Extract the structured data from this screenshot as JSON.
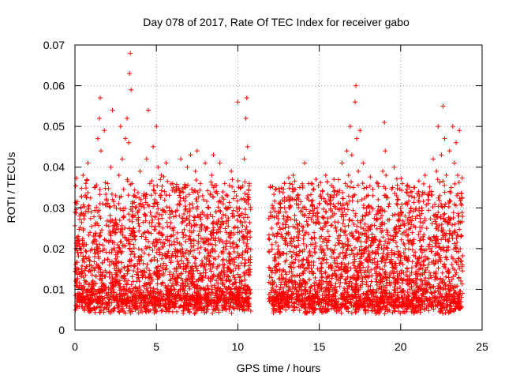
{
  "chart_data": {
    "type": "scatter",
    "title": "Day 078 of 2017, Rate Of TEC Index for receiver gabo",
    "xlabel": "GPS time / hours",
    "ylabel": "ROTI / TECUs",
    "xlim": [
      0,
      25
    ],
    "ylim": [
      0,
      0.07
    ],
    "xticks": [
      0,
      5,
      10,
      15,
      20,
      25
    ],
    "xtick_labels": [
      "0",
      "5",
      "10",
      "15",
      "20",
      "25"
    ],
    "yticks": [
      0,
      0.01,
      0.02,
      0.03,
      0.04,
      0.05,
      0.06,
      0.07
    ],
    "ytick_labels": [
      "0",
      "0.01",
      "0.02",
      "0.03",
      "0.04",
      "0.05",
      "0.06",
      "0.07"
    ],
    "grid": true,
    "marker": "+",
    "color": "#ff0000",
    "data_gap_hours": [
      10.8,
      11.9
    ],
    "series": [
      {
        "points": [
          [
            0.05,
            0.012
          ],
          [
            0.1,
            0.031
          ],
          [
            0.15,
            0.022
          ],
          [
            0.2,
            0.009
          ],
          [
            0.3,
            0.028
          ],
          [
            0.4,
            0.015
          ],
          [
            0.5,
            0.038
          ],
          [
            0.6,
            0.01
          ],
          [
            0.7,
            0.021
          ],
          [
            0.8,
            0.041
          ],
          [
            0.9,
            0.016
          ],
          [
            1.0,
            0.029
          ],
          [
            1.1,
            0.012
          ],
          [
            1.2,
            0.035
          ],
          [
            1.3,
            0.019
          ],
          [
            1.4,
            0.047
          ],
          [
            1.5,
            0.052
          ],
          [
            1.55,
            0.057
          ],
          [
            1.6,
            0.044
          ],
          [
            1.7,
            0.031
          ],
          [
            1.8,
            0.049
          ],
          [
            1.9,
            0.022
          ],
          [
            2.0,
            0.036
          ],
          [
            2.1,
            0.014
          ],
          [
            2.2,
            0.04
          ],
          [
            2.3,
            0.054
          ],
          [
            2.4,
            0.025
          ],
          [
            2.5,
            0.033
          ],
          [
            2.6,
            0.018
          ],
          [
            2.7,
            0.038
          ],
          [
            2.8,
            0.05
          ],
          [
            2.9,
            0.042
          ],
          [
            3.0,
            0.028
          ],
          [
            3.1,
            0.047
          ],
          [
            3.2,
            0.052
          ],
          [
            3.3,
            0.046
          ],
          [
            3.35,
            0.063
          ],
          [
            3.4,
            0.068
          ],
          [
            3.45,
            0.059
          ],
          [
            3.5,
            0.036
          ],
          [
            3.6,
            0.021
          ],
          [
            3.7,
            0.03
          ],
          [
            3.8,
            0.012
          ],
          [
            3.9,
            0.027
          ],
          [
            4.0,
            0.039
          ],
          [
            4.1,
            0.018
          ],
          [
            4.2,
            0.033
          ],
          [
            4.3,
            0.024
          ],
          [
            4.4,
            0.042
          ],
          [
            4.5,
            0.054
          ],
          [
            4.6,
            0.036
          ],
          [
            4.7,
            0.028
          ],
          [
            4.8,
            0.045
          ],
          [
            4.9,
            0.032
          ],
          [
            5.0,
            0.05
          ],
          [
            5.1,
            0.04
          ],
          [
            5.2,
            0.026
          ],
          [
            5.3,
            0.038
          ],
          [
            5.4,
            0.015
          ],
          [
            5.5,
            0.034
          ],
          [
            5.6,
            0.041
          ],
          [
            5.7,
            0.022
          ],
          [
            5.8,
            0.03
          ],
          [
            5.9,
            0.017
          ],
          [
            6.0,
            0.036
          ],
          [
            6.1,
            0.021
          ],
          [
            6.2,
            0.028
          ],
          [
            6.3,
            0.013
          ],
          [
            6.4,
            0.031
          ],
          [
            6.5,
            0.042
          ],
          [
            6.6,
            0.024
          ],
          [
            6.7,
            0.035
          ],
          [
            6.8,
            0.019
          ],
          [
            6.9,
            0.04
          ],
          [
            7.0,
            0.027
          ],
          [
            7.1,
            0.043
          ],
          [
            7.2,
            0.031
          ],
          [
            7.3,
            0.022
          ],
          [
            7.4,
            0.039
          ],
          [
            7.5,
            0.044
          ],
          [
            7.6,
            0.028
          ],
          [
            7.7,
            0.036
          ],
          [
            7.8,
            0.017
          ],
          [
            7.9,
            0.032
          ],
          [
            8.0,
            0.041
          ],
          [
            8.1,
            0.025
          ],
          [
            8.2,
            0.03
          ],
          [
            8.3,
            0.015
          ],
          [
            8.4,
            0.038
          ],
          [
            8.5,
            0.043
          ],
          [
            8.6,
            0.022
          ],
          [
            8.7,
            0.034
          ],
          [
            8.8,
            0.027
          ],
          [
            8.9,
            0.041
          ],
          [
            9.0,
            0.019
          ],
          [
            9.1,
            0.031
          ],
          [
            9.2,
            0.036
          ],
          [
            9.3,
            0.024
          ],
          [
            9.4,
            0.03
          ],
          [
            9.5,
            0.017
          ],
          [
            9.6,
            0.039
          ],
          [
            9.7,
            0.028
          ],
          [
            9.8,
            0.034
          ],
          [
            9.9,
            0.021
          ],
          [
            10.0,
            0.056
          ],
          [
            10.1,
            0.028
          ],
          [
            10.2,
            0.035
          ],
          [
            10.3,
            0.019
          ],
          [
            10.4,
            0.042
          ],
          [
            10.5,
            0.052
          ],
          [
            10.55,
            0.057
          ],
          [
            10.6,
            0.045
          ],
          [
            10.65,
            0.031
          ],
          [
            10.7,
            0.036
          ],
          [
            12.0,
            0.035
          ],
          [
            12.1,
            0.021
          ],
          [
            12.2,
            0.03
          ],
          [
            12.3,
            0.014
          ],
          [
            12.4,
            0.026
          ],
          [
            12.5,
            0.019
          ],
          [
            12.6,
            0.031
          ],
          [
            12.7,
            0.023
          ],
          [
            12.8,
            0.028
          ],
          [
            12.9,
            0.012
          ],
          [
            13.0,
            0.032
          ],
          [
            13.1,
            0.024
          ],
          [
            13.2,
            0.036
          ],
          [
            13.3,
            0.018
          ],
          [
            13.4,
            0.038
          ],
          [
            13.5,
            0.027
          ],
          [
            13.6,
            0.031
          ],
          [
            13.7,
            0.022
          ],
          [
            13.8,
            0.035
          ],
          [
            13.9,
            0.016
          ],
          [
            14.0,
            0.03
          ],
          [
            14.1,
            0.041
          ],
          [
            14.2,
            0.024
          ],
          [
            14.3,
            0.033
          ],
          [
            14.4,
            0.019
          ],
          [
            14.5,
            0.036
          ],
          [
            14.6,
            0.028
          ],
          [
            14.7,
            0.02
          ],
          [
            14.8,
            0.037
          ],
          [
            14.9,
            0.015
          ],
          [
            15.0,
            0.031
          ],
          [
            15.1,
            0.025
          ],
          [
            15.2,
            0.034
          ],
          [
            15.3,
            0.019
          ],
          [
            15.4,
            0.038
          ],
          [
            15.5,
            0.022
          ],
          [
            15.6,
            0.032
          ],
          [
            15.7,
            0.016
          ],
          [
            15.8,
            0.029
          ],
          [
            15.9,
            0.037
          ],
          [
            16.0,
            0.025
          ],
          [
            16.1,
            0.034
          ],
          [
            16.2,
            0.018
          ],
          [
            16.3,
            0.031
          ],
          [
            16.4,
            0.041
          ],
          [
            16.5,
            0.027
          ],
          [
            16.6,
            0.036
          ],
          [
            16.7,
            0.044
          ],
          [
            16.8,
            0.038
          ],
          [
            16.9,
            0.05
          ],
          [
            17.0,
            0.043
          ],
          [
            17.1,
            0.035
          ],
          [
            17.2,
            0.056
          ],
          [
            17.25,
            0.06
          ],
          [
            17.3,
            0.047
          ],
          [
            17.4,
            0.039
          ],
          [
            17.5,
            0.049
          ],
          [
            17.6,
            0.032
          ],
          [
            17.7,
            0.041
          ],
          [
            17.8,
            0.026
          ],
          [
            17.9,
            0.035
          ],
          [
            18.0,
            0.018
          ],
          [
            18.1,
            0.029
          ],
          [
            18.2,
            0.022
          ],
          [
            18.3,
            0.033
          ],
          [
            18.4,
            0.015
          ],
          [
            18.5,
            0.027
          ],
          [
            18.6,
            0.036
          ],
          [
            18.7,
            0.021
          ],
          [
            18.8,
            0.03
          ],
          [
            18.9,
            0.039
          ],
          [
            19.0,
            0.051
          ],
          [
            19.05,
            0.044
          ],
          [
            19.1,
            0.038
          ],
          [
            19.2,
            0.024
          ],
          [
            19.3,
            0.031
          ],
          [
            19.4,
            0.017
          ],
          [
            19.5,
            0.035
          ],
          [
            19.6,
            0.04
          ],
          [
            19.7,
            0.023
          ],
          [
            19.8,
            0.032
          ],
          [
            19.9,
            0.019
          ],
          [
            20.0,
            0.029
          ],
          [
            20.1,
            0.036
          ],
          [
            20.2,
            0.024
          ],
          [
            20.3,
            0.031
          ],
          [
            20.4,
            0.015
          ],
          [
            20.5,
            0.033
          ],
          [
            20.6,
            0.027
          ],
          [
            20.7,
            0.021
          ],
          [
            20.8,
            0.035
          ],
          [
            20.9,
            0.018
          ],
          [
            21.0,
            0.028
          ],
          [
            21.1,
            0.034
          ],
          [
            21.2,
            0.022
          ],
          [
            21.3,
            0.03
          ],
          [
            21.4,
            0.016
          ],
          [
            21.5,
            0.038
          ],
          [
            21.6,
            0.025
          ],
          [
            21.7,
            0.032
          ],
          [
            21.8,
            0.02
          ],
          [
            21.9,
            0.034
          ],
          [
            22.0,
            0.042
          ],
          [
            22.1,
            0.028
          ],
          [
            22.2,
            0.039
          ],
          [
            22.3,
            0.05
          ],
          [
            22.4,
            0.033
          ],
          [
            22.5,
            0.043
          ],
          [
            22.6,
            0.055
          ],
          [
            22.7,
            0.047
          ],
          [
            22.8,
            0.038
          ],
          [
            22.9,
            0.026
          ],
          [
            23.0,
            0.044
          ],
          [
            23.1,
            0.035
          ],
          [
            23.2,
            0.05
          ],
          [
            23.3,
            0.041
          ],
          [
            23.4,
            0.046
          ],
          [
            23.5,
            0.038
          ],
          [
            23.6,
            0.049
          ],
          [
            23.7,
            0.031
          ]
        ]
      }
    ]
  }
}
